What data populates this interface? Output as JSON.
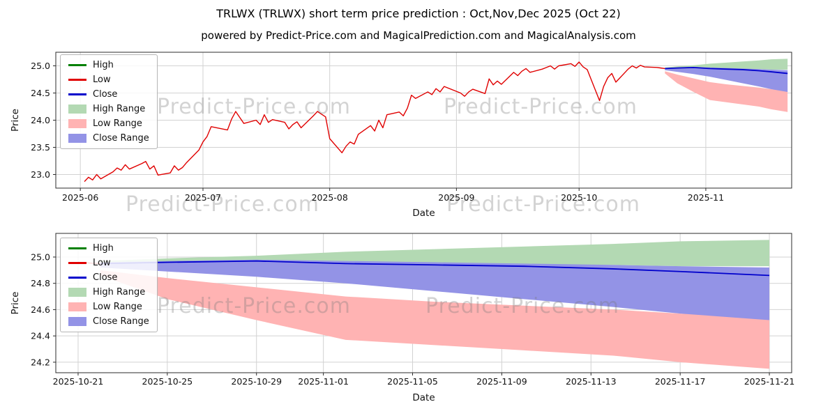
{
  "page": {
    "title": "TRLWX (TRLWX) short term price prediction : Oct,Nov,Dec 2025 (Oct 22)",
    "subtitle": "powered by Predict-Price.com and MagicalPrediction.com and MagicalAnalysis.com",
    "watermark": "Predict-Price.com"
  },
  "colors": {
    "high_line": "#008000",
    "low_line": "#e00000",
    "close_line": "#0000cc",
    "high_range": "#b3d9b3",
    "low_range": "#ffb3b3",
    "close_range": "#9393e6",
    "grid": "#d2d2d2",
    "axis": "#2b2b2b",
    "text": "#111111"
  },
  "legend": {
    "items": [
      {
        "label": "High",
        "type": "line",
        "color": "#008000"
      },
      {
        "label": "Low",
        "type": "line",
        "color": "#e00000"
      },
      {
        "label": "Close",
        "type": "line",
        "color": "#0000cc"
      },
      {
        "label": "High Range",
        "type": "patch",
        "color": "#b3d9b3"
      },
      {
        "label": "Low Range",
        "type": "patch",
        "color": "#ffb3b3"
      },
      {
        "label": "Close Range",
        "type": "patch",
        "color": "#9393e6"
      }
    ]
  },
  "chart_data": [
    {
      "type": "line",
      "xlabel": "Date",
      "ylabel": "Price",
      "xmin": "2025-05-26",
      "xmax": "2025-11-22",
      "ylim": [
        22.75,
        25.25
      ],
      "yticks": [
        {
          "value": 23.0,
          "label": "23.0"
        },
        {
          "value": 23.5,
          "label": "23.5"
        },
        {
          "value": 24.0,
          "label": "24.0"
        },
        {
          "value": 24.5,
          "label": "24.5"
        },
        {
          "value": 25.0,
          "label": "25.0"
        }
      ],
      "xticks": [
        {
          "date": "2025-06-01",
          "label": "2025-06"
        },
        {
          "date": "2025-07-01",
          "label": "2025-07"
        },
        {
          "date": "2025-08-01",
          "label": "2025-08"
        },
        {
          "date": "2025-09-01",
          "label": "2025-09"
        },
        {
          "date": "2025-10-01",
          "label": "2025-10"
        },
        {
          "date": "2025-11-01",
          "label": "2025-11"
        }
      ],
      "historical": {
        "name": "Low",
        "dates": [
          "2025-06-02",
          "2025-06-03",
          "2025-06-04",
          "2025-06-05",
          "2025-06-06",
          "2025-06-09",
          "2025-06-10",
          "2025-06-11",
          "2025-06-12",
          "2025-06-13",
          "2025-06-16",
          "2025-06-17",
          "2025-06-18",
          "2025-06-19",
          "2025-06-20",
          "2025-06-23",
          "2025-06-24",
          "2025-06-25",
          "2025-06-26",
          "2025-06-27",
          "2025-06-30",
          "2025-07-01",
          "2025-07-02",
          "2025-07-03",
          "2025-07-07",
          "2025-07-08",
          "2025-07-09",
          "2025-07-10",
          "2025-07-11",
          "2025-07-14",
          "2025-07-15",
          "2025-07-16",
          "2025-07-17",
          "2025-07-18",
          "2025-07-21",
          "2025-07-22",
          "2025-07-23",
          "2025-07-24",
          "2025-07-25",
          "2025-07-28",
          "2025-07-29",
          "2025-07-30",
          "2025-07-31",
          "2025-08-01",
          "2025-08-04",
          "2025-08-05",
          "2025-08-06",
          "2025-08-07",
          "2025-08-08",
          "2025-08-11",
          "2025-08-12",
          "2025-08-13",
          "2025-08-14",
          "2025-08-15",
          "2025-08-18",
          "2025-08-19",
          "2025-08-20",
          "2025-08-21",
          "2025-08-22",
          "2025-08-25",
          "2025-08-26",
          "2025-08-27",
          "2025-08-28",
          "2025-08-29",
          "2025-09-02",
          "2025-09-03",
          "2025-09-04",
          "2025-09-05",
          "2025-09-08",
          "2025-09-09",
          "2025-09-10",
          "2025-09-11",
          "2025-09-12",
          "2025-09-15",
          "2025-09-16",
          "2025-09-17",
          "2025-09-18",
          "2025-09-19",
          "2025-09-22",
          "2025-09-23",
          "2025-09-24",
          "2025-09-25",
          "2025-09-26",
          "2025-09-29",
          "2025-09-30",
          "2025-10-01",
          "2025-10-02",
          "2025-10-03",
          "2025-10-06",
          "2025-10-07",
          "2025-10-08",
          "2025-10-09",
          "2025-10-10",
          "2025-10-13",
          "2025-10-14",
          "2025-10-15",
          "2025-10-16",
          "2025-10-17",
          "2025-10-20",
          "2025-10-21",
          "2025-10-22"
        ],
        "values": [
          22.87,
          22.95,
          22.9,
          23.0,
          22.92,
          23.05,
          23.12,
          23.08,
          23.18,
          23.1,
          23.2,
          23.24,
          23.1,
          23.16,
          22.99,
          23.03,
          23.16,
          23.08,
          23.13,
          23.22,
          23.45,
          23.6,
          23.7,
          23.88,
          23.82,
          24.02,
          24.16,
          24.05,
          23.94,
          24.0,
          23.92,
          24.1,
          23.96,
          24.01,
          23.96,
          23.84,
          23.92,
          23.97,
          23.86,
          24.08,
          24.16,
          24.11,
          24.06,
          23.66,
          23.4,
          23.52,
          23.6,
          23.56,
          23.74,
          23.9,
          23.8,
          24.0,
          23.86,
          24.1,
          24.15,
          24.08,
          24.22,
          24.46,
          24.4,
          24.52,
          24.47,
          24.58,
          24.52,
          24.62,
          24.5,
          24.44,
          24.52,
          24.57,
          24.49,
          24.76,
          24.65,
          24.72,
          24.66,
          24.88,
          24.82,
          24.9,
          24.95,
          24.88,
          24.94,
          24.97,
          25.0,
          24.94,
          25.0,
          25.04,
          24.99,
          25.07,
          24.98,
          24.93,
          24.36,
          24.62,
          24.78,
          24.86,
          24.7,
          24.94,
          25.0,
          24.96,
          25.01,
          24.98,
          24.97,
          24.96,
          24.95
        ]
      },
      "prediction": {
        "dates": [
          "2025-10-22",
          "2025-10-25",
          "2025-10-29",
          "2025-11-02",
          "2025-11-06",
          "2025-11-10",
          "2025-11-14",
          "2025-11-17",
          "2025-11-21"
        ],
        "high_range_top": [
          24.97,
          24.99,
          25.01,
          25.04,
          25.06,
          25.08,
          25.1,
          25.12,
          25.13
        ],
        "high_range_bottom": [
          24.95,
          24.96,
          24.96,
          24.95,
          24.95,
          24.94,
          24.94,
          24.93,
          24.93
        ],
        "close_range_top": [
          24.96,
          24.97,
          24.98,
          24.97,
          24.96,
          24.95,
          24.94,
          24.93,
          24.92
        ],
        "close_range_bottom": [
          24.92,
          24.89,
          24.85,
          24.8,
          24.74,
          24.68,
          24.62,
          24.57,
          24.52
        ],
        "low_range_top": [
          24.9,
          24.84,
          24.77,
          24.7,
          24.66,
          24.63,
          24.6,
          24.57,
          24.54
        ],
        "low_range_bottom": [
          24.86,
          24.68,
          24.52,
          24.37,
          24.33,
          24.29,
          24.25,
          24.2,
          24.15
        ],
        "close": [
          24.95,
          24.96,
          24.97,
          24.95,
          24.94,
          24.93,
          24.91,
          24.89,
          24.86
        ]
      }
    },
    {
      "type": "line",
      "xlabel": "Date",
      "ylabel": "Price",
      "xmin": "2025-10-20",
      "xmax": "2025-11-22",
      "ylim": [
        24.12,
        25.18
      ],
      "yticks": [
        {
          "value": 24.2,
          "label": "24.2"
        },
        {
          "value": 24.4,
          "label": "24.4"
        },
        {
          "value": 24.6,
          "label": "24.6"
        },
        {
          "value": 24.8,
          "label": "24.8"
        },
        {
          "value": 25.0,
          "label": "25.0"
        }
      ],
      "xticks": [
        {
          "date": "2025-10-21",
          "label": "2025-10-21"
        },
        {
          "date": "2025-10-25",
          "label": "2025-10-25"
        },
        {
          "date": "2025-10-29",
          "label": "2025-10-29"
        },
        {
          "date": "2025-11-01",
          "label": "2025-11-01"
        },
        {
          "date": "2025-11-05",
          "label": "2025-11-05"
        },
        {
          "date": "2025-11-09",
          "label": "2025-11-09"
        },
        {
          "date": "2025-11-13",
          "label": "2025-11-13"
        },
        {
          "date": "2025-11-17",
          "label": "2025-11-17"
        },
        {
          "date": "2025-11-21",
          "label": "2025-11-21"
        }
      ],
      "historical": {
        "name": "Low",
        "dates": [
          "2025-10-21",
          "2025-10-22"
        ],
        "values": [
          24.96,
          24.95
        ]
      },
      "prediction": {
        "dates": [
          "2025-10-22",
          "2025-10-25",
          "2025-10-29",
          "2025-11-02",
          "2025-11-06",
          "2025-11-10",
          "2025-11-14",
          "2025-11-17",
          "2025-11-21"
        ],
        "high_range_top": [
          24.97,
          24.99,
          25.01,
          25.04,
          25.06,
          25.08,
          25.1,
          25.12,
          25.13
        ],
        "high_range_bottom": [
          24.95,
          24.96,
          24.96,
          24.95,
          24.95,
          24.94,
          24.94,
          24.93,
          24.93
        ],
        "close_range_top": [
          24.96,
          24.97,
          24.98,
          24.97,
          24.96,
          24.95,
          24.94,
          24.93,
          24.92
        ],
        "close_range_bottom": [
          24.92,
          24.89,
          24.85,
          24.8,
          24.74,
          24.68,
          24.62,
          24.57,
          24.52
        ],
        "low_range_top": [
          24.9,
          24.84,
          24.77,
          24.7,
          24.66,
          24.63,
          24.6,
          24.57,
          24.54
        ],
        "low_range_bottom": [
          24.86,
          24.68,
          24.52,
          24.37,
          24.33,
          24.29,
          24.25,
          24.2,
          24.15
        ],
        "close": [
          24.95,
          24.96,
          24.97,
          24.95,
          24.94,
          24.93,
          24.91,
          24.89,
          24.86
        ]
      }
    }
  ]
}
